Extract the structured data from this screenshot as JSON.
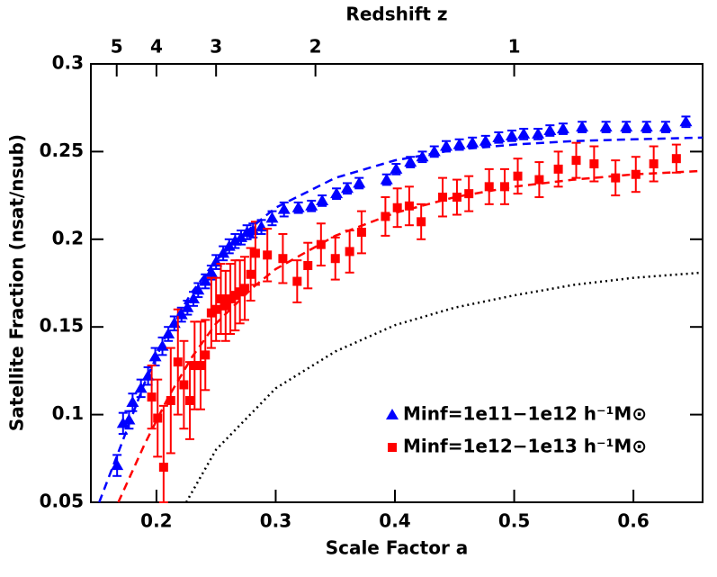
{
  "chart_data": {
    "type": "scatter",
    "x_label": "Scale Factor a",
    "y_label": "Satellite Fraction (nsat/nsub)",
    "x2_label": "Redshift z",
    "xlim": [
      0.145,
      0.658
    ],
    "xticks": [
      0.2,
      0.3,
      0.4,
      0.5,
      0.6
    ],
    "ylim": [
      0.05,
      0.3
    ],
    "yticks": [
      0.05,
      0.1,
      0.15,
      0.2,
      0.25,
      0.3
    ],
    "x2ticks": [
      5,
      4,
      3,
      2,
      1
    ],
    "legend": "lower right",
    "series": [
      {
        "name": "Minf=1e11−1e12 h⁻¹M⊙",
        "color": "#0000ff",
        "marker": "triangle",
        "x": [
          0.167,
          0.172,
          0.177,
          0.18,
          0.187,
          0.193,
          0.199,
          0.205,
          0.21,
          0.215,
          0.221,
          0.226,
          0.231,
          0.235,
          0.241,
          0.246,
          0.25,
          0.256,
          0.261,
          0.266,
          0.271,
          0.276,
          0.281,
          0.288,
          0.297,
          0.307,
          0.319,
          0.33,
          0.339,
          0.351,
          0.36,
          0.37,
          0.393,
          0.401,
          0.413,
          0.423,
          0.433,
          0.443,
          0.454,
          0.465,
          0.476,
          0.487,
          0.498,
          0.508,
          0.52,
          0.53,
          0.541,
          0.557,
          0.577,
          0.594,
          0.611,
          0.627,
          0.644
        ],
        "values": [
          0.071,
          0.095,
          0.097,
          0.107,
          0.115,
          0.122,
          0.133,
          0.139,
          0.146,
          0.152,
          0.157,
          0.161,
          0.166,
          0.171,
          0.176,
          0.181,
          0.187,
          0.192,
          0.196,
          0.199,
          0.201,
          0.204,
          0.205,
          0.207,
          0.212,
          0.217,
          0.218,
          0.219,
          0.222,
          0.226,
          0.229,
          0.232,
          0.234,
          0.24,
          0.244,
          0.247,
          0.25,
          0.253,
          0.254,
          0.255,
          0.256,
          0.258,
          0.259,
          0.26,
          0.26,
          0.262,
          0.263,
          0.264,
          0.264,
          0.264,
          0.264,
          0.264,
          0.267
        ],
        "errors": [
          0.006,
          0.006,
          0.005,
          0.005,
          0.005,
          0.005,
          0.005,
          0.005,
          0.004,
          0.004,
          0.004,
          0.004,
          0.004,
          0.004,
          0.004,
          0.004,
          0.004,
          0.004,
          0.004,
          0.004,
          0.004,
          0.004,
          0.004,
          0.004,
          0.004,
          0.004,
          0.003,
          0.003,
          0.003,
          0.003,
          0.003,
          0.003,
          0.003,
          0.003,
          0.003,
          0.003,
          0.003,
          0.003,
          0.003,
          0.003,
          0.003,
          0.003,
          0.003,
          0.003,
          0.003,
          0.003,
          0.003,
          0.003,
          0.003,
          0.003,
          0.003,
          0.003,
          0.003
        ]
      },
      {
        "name": "Minf=1e12−1e13 h⁻¹M⊙",
        "color": "#ff0000",
        "marker": "square",
        "x": [
          0.196,
          0.201,
          0.206,
          0.212,
          0.218,
          0.223,
          0.228,
          0.232,
          0.237,
          0.241,
          0.246,
          0.25,
          0.254,
          0.258,
          0.262,
          0.266,
          0.27,
          0.274,
          0.279,
          0.283,
          0.293,
          0.306,
          0.318,
          0.327,
          0.338,
          0.35,
          0.362,
          0.372,
          0.392,
          0.402,
          0.412,
          0.422,
          0.44,
          0.452,
          0.462,
          0.479,
          0.492,
          0.503,
          0.521,
          0.537,
          0.552,
          0.567,
          0.585,
          0.602,
          0.617,
          0.636
        ],
        "values": [
          0.11,
          0.098,
          0.07,
          0.108,
          0.13,
          0.117,
          0.108,
          0.128,
          0.128,
          0.134,
          0.158,
          0.16,
          0.166,
          0.162,
          0.166,
          0.168,
          0.17,
          0.172,
          0.18,
          0.192,
          0.191,
          0.189,
          0.176,
          0.185,
          0.197,
          0.189,
          0.193,
          0.204,
          0.213,
          0.218,
          0.219,
          0.21,
          0.224,
          0.224,
          0.226,
          0.23,
          0.23,
          0.236,
          0.234,
          0.24,
          0.245,
          0.243,
          0.235,
          0.237,
          0.243,
          0.246
        ],
        "errors": [
          0.018,
          0.022,
          0.035,
          0.03,
          0.03,
          0.025,
          0.022,
          0.025,
          0.025,
          0.02,
          0.02,
          0.018,
          0.02,
          0.02,
          0.02,
          0.02,
          0.018,
          0.018,
          0.015,
          0.018,
          0.015,
          0.014,
          0.012,
          0.013,
          0.012,
          0.012,
          0.012,
          0.012,
          0.011,
          0.011,
          0.011,
          0.01,
          0.011,
          0.01,
          0.01,
          0.01,
          0.01,
          0.01,
          0.01,
          0.01,
          0.01,
          0.01,
          0.01,
          0.01,
          0.01,
          0.008
        ]
      },
      {
        "color": "#0000ff",
        "marker": "dashed",
        "x": [
          0.152,
          0.17,
          0.19,
          0.21,
          0.23,
          0.25,
          0.28,
          0.3,
          0.35,
          0.4,
          0.45,
          0.5,
          0.55,
          0.6,
          0.658
        ],
        "values": [
          0.05,
          0.082,
          0.118,
          0.148,
          0.17,
          0.188,
          0.207,
          0.218,
          0.235,
          0.245,
          0.251,
          0.254,
          0.256,
          0.257,
          0.258
        ]
      },
      {
        "color": "#ff0000",
        "marker": "dashed",
        "x": [
          0.168,
          0.19,
          0.21,
          0.23,
          0.25,
          0.28,
          0.3,
          0.35,
          0.4,
          0.45,
          0.5,
          0.55,
          0.6,
          0.658
        ],
        "values": [
          0.05,
          0.083,
          0.11,
          0.133,
          0.152,
          0.172,
          0.183,
          0.202,
          0.215,
          0.224,
          0.23,
          0.234,
          0.237,
          0.239
        ]
      },
      {
        "color": "#000000",
        "marker": "dotted",
        "x": [
          0.225,
          0.25,
          0.3,
          0.35,
          0.4,
          0.45,
          0.5,
          0.55,
          0.6,
          0.658
        ],
        "values": [
          0.05,
          0.08,
          0.115,
          0.136,
          0.151,
          0.161,
          0.168,
          0.174,
          0.178,
          0.181
        ]
      }
    ]
  }
}
